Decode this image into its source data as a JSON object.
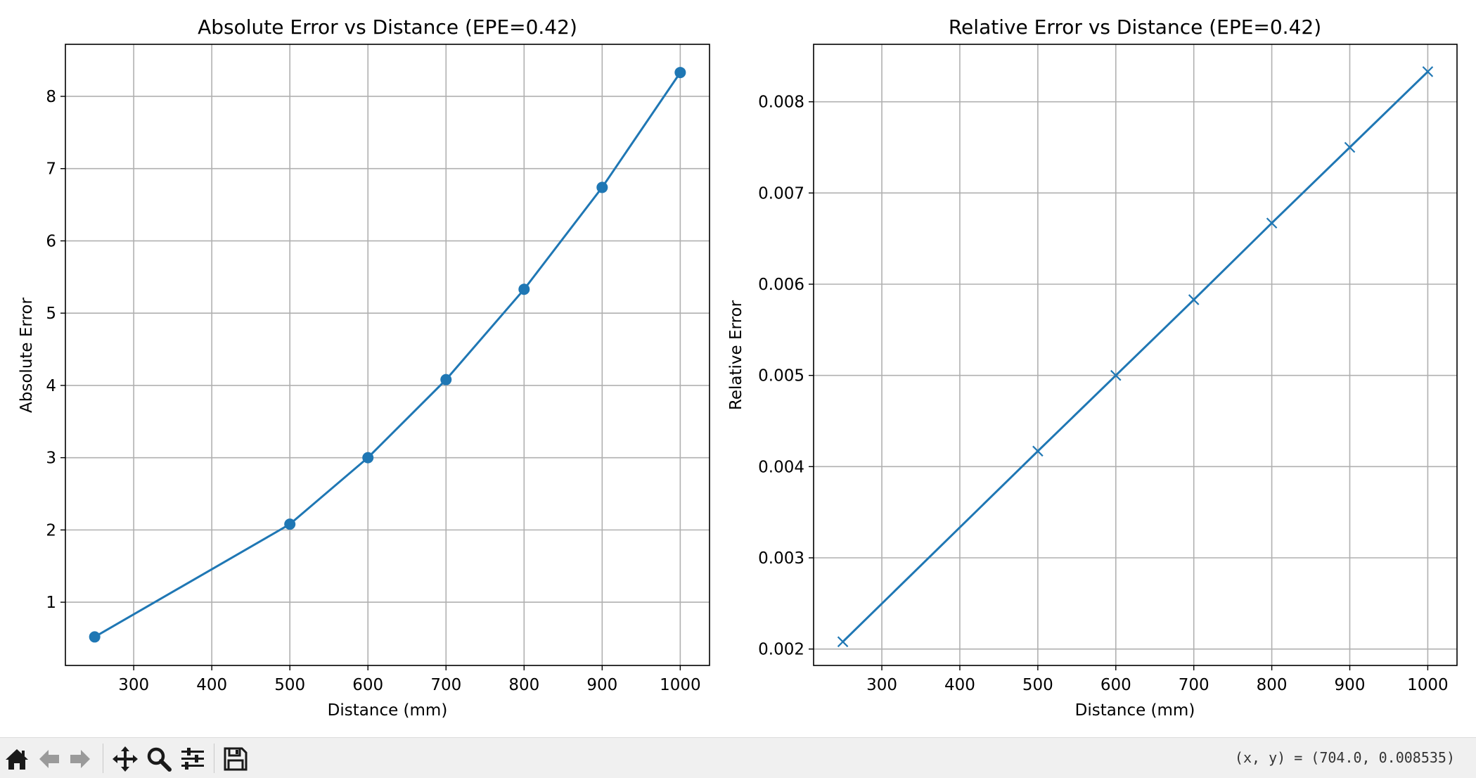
{
  "toolbar": {
    "icons": [
      "home-icon",
      "back-arrow-icon",
      "forward-arrow-icon",
      "pan-icon",
      "zoom-icon",
      "configure-subplots-icon",
      "save-icon"
    ],
    "coords_text": "(x, y) = (704.0, 0.008535)"
  },
  "colors": {
    "series": "#1f77b4",
    "grid": "#b0b0b0",
    "toolbar_bg": "#f0f0f0"
  },
  "chart_data": [
    {
      "type": "line",
      "title": "Absolute Error vs Distance (EPE=0.42)",
      "xlabel": "Distance (mm)",
      "ylabel": "Absolute Error",
      "marker": "circle",
      "grid": true,
      "xlim": [
        212.5,
        1037.5
      ],
      "ylim": [
        0.125,
        8.72
      ],
      "xticks": [
        300,
        400,
        500,
        600,
        700,
        800,
        900,
        1000
      ],
      "xtick_labels": [
        "300",
        "400",
        "500",
        "600",
        "700",
        "800",
        "900",
        "1000"
      ],
      "yticks": [
        1,
        2,
        3,
        4,
        5,
        6,
        7,
        8
      ],
      "ytick_labels": [
        "1",
        "2",
        "3",
        "4",
        "5",
        "6",
        "7",
        "8"
      ],
      "x": [
        250,
        500,
        600,
        700,
        800,
        900,
        1000
      ],
      "y": [
        0.52,
        2.08,
        3.0,
        4.08,
        5.33,
        6.74,
        8.33
      ]
    },
    {
      "type": "line",
      "title": "Relative Error vs Distance (EPE=0.42)",
      "xlabel": "Distance (mm)",
      "ylabel": "Relative Error",
      "marker": "x",
      "grid": true,
      "xlim": [
        212.5,
        1037.5
      ],
      "ylim": [
        0.00182,
        0.00863
      ],
      "xticks": [
        300,
        400,
        500,
        600,
        700,
        800,
        900,
        1000
      ],
      "xtick_labels": [
        "300",
        "400",
        "500",
        "600",
        "700",
        "800",
        "900",
        "1000"
      ],
      "yticks": [
        0.002,
        0.003,
        0.004,
        0.005,
        0.006,
        0.007,
        0.008
      ],
      "ytick_labels": [
        "0.002",
        "0.003",
        "0.004",
        "0.005",
        "0.006",
        "0.007",
        "0.008"
      ],
      "x": [
        250,
        500,
        600,
        700,
        800,
        900,
        1000
      ],
      "y": [
        0.00208,
        0.00417,
        0.005,
        0.00583,
        0.00667,
        0.0075,
        0.00833
      ]
    }
  ]
}
